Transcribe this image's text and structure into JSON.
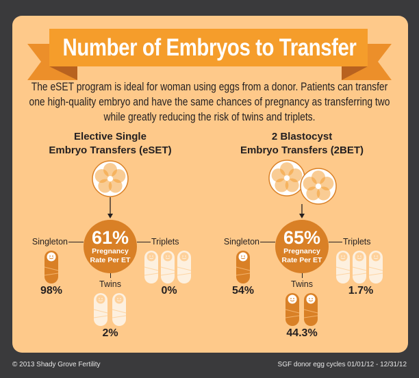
{
  "title": "Number of Embryos to Transfer",
  "intro": "The eSET program is ideal for woman using eggs from a donor. Patients can transfer one high-quality embryo and have the same chances of pregnancy as transferring two while greatly reducing the risk of twins and triplets.",
  "colors": {
    "background": "#3a3a3c",
    "panel": "#fec98a",
    "accent": "#f39a2a",
    "active": "#d98026",
    "inactive": "#fdf0df"
  },
  "panels": [
    {
      "heading_1": "Elective Single",
      "heading_2": "Embryo Transfers (eSET)",
      "embryos": 1,
      "rate": "61%",
      "rate_label_1": "Pregnancy",
      "rate_label_2": "Rate Per ET",
      "singleton": {
        "label": "Singleton",
        "value": "98%",
        "active": true
      },
      "twins": {
        "label": "Twins",
        "value": "2%",
        "active": false
      },
      "triplets": {
        "label": "Triplets",
        "value": "0%",
        "active": false
      }
    },
    {
      "heading_1": "2 Blastocyst",
      "heading_2": "Embryo Transfers (2BET)",
      "embryos": 2,
      "rate": "65%",
      "rate_label_1": "Pregnancy",
      "rate_label_2": "Rate Per ET",
      "singleton": {
        "label": "Singleton",
        "value": "54%",
        "active": true
      },
      "twins": {
        "label": "Twins",
        "value": "44.3%",
        "active": true
      },
      "triplets": {
        "label": "Triplets",
        "value": "1.7%",
        "active": false
      }
    }
  ],
  "footer": {
    "copyright": "© 2013 Shady Grove Fertility",
    "source": "SGF donor egg cycles 01/01/12 - 12/31/12"
  }
}
